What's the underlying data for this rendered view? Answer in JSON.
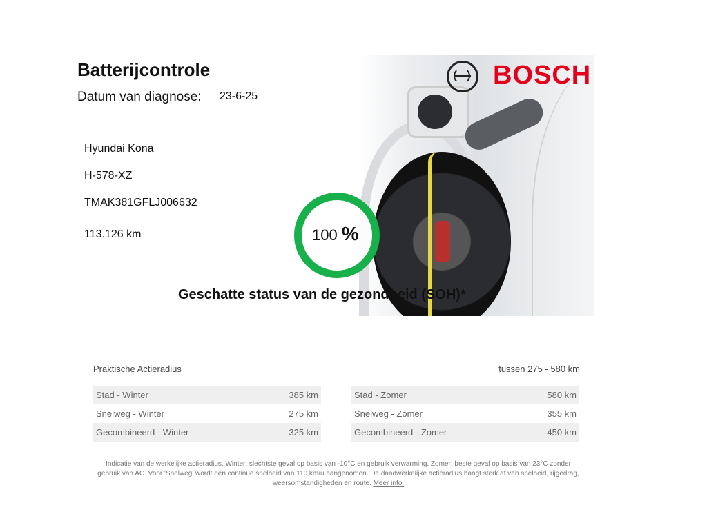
{
  "header": {
    "title": "Batterijcontrole",
    "date_label": "Datum van diagnose:",
    "date_value": "23-6-25",
    "brand": "BOSCH"
  },
  "vehicle": {
    "model": "Hyundai Kona",
    "plate": "H-578-XZ",
    "vin": "TMAK381GFLJ006632",
    "mileage": "113.126 km"
  },
  "soh": {
    "value": "100",
    "unit": "%",
    "percent": 100,
    "caption": "Geschatte status van de gezondheid (SOH)*",
    "color": "#18b04a"
  },
  "range": {
    "title": "Praktische Actieradius",
    "summary": "tussen 275 - 580 km",
    "winter": [
      {
        "label": "Stad - Winter",
        "value": "385 km"
      },
      {
        "label": "Snelweg - Winter",
        "value": "275 km"
      },
      {
        "label": "Gecombineerd - Winter",
        "value": "325 km"
      }
    ],
    "zomer": [
      {
        "label": "Stad - Zomer",
        "value": "580 km"
      },
      {
        "label": "Snelweg - Zomer",
        "value": "355 km"
      },
      {
        "label": "Gecombineerd - Zomer",
        "value": "450 km"
      }
    ]
  },
  "footnote": {
    "text": "Indicatie van de werkelijke actieradius. Winter: slechtste geval op basis van -10°C en gebruik verwarming. Zomer: beste geval op basis van 23°C zonder gebruik van AC. Voor 'Snelweg' wordt een continue snelheid van 110 km/u aangenomen. De daadwerkelijke actieradius hangt sterk af van snelheid, rijgedrag, weersomstandigheden en route.",
    "link": "Meer info."
  }
}
